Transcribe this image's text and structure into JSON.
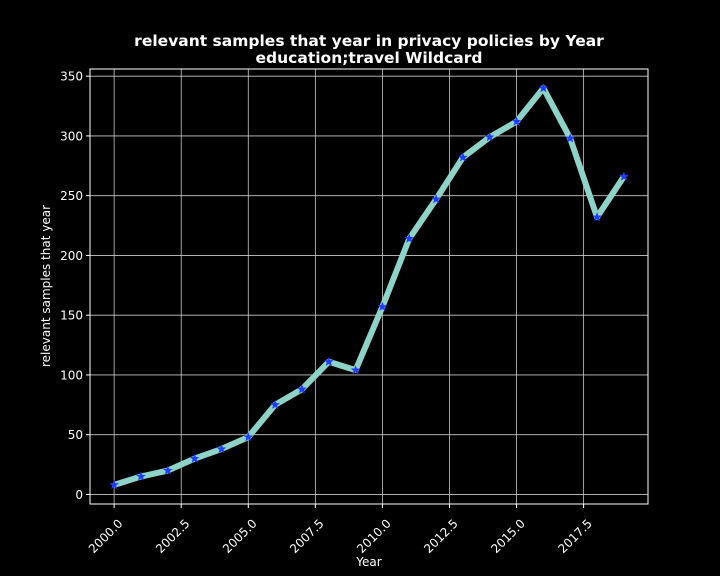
{
  "chart_data": {
    "type": "line",
    "title": "relevant samples that year in privacy policies by Year",
    "subtitle": "education;travel Wildcard",
    "xlabel": "Year",
    "ylabel": "relevant samples that year",
    "xlim": [
      1999.1,
      2019.9
    ],
    "ylim": [
      -8,
      356
    ],
    "xticks": [
      2000.0,
      2002.5,
      2005.0,
      2007.5,
      2010.0,
      2012.5,
      2015.0,
      2017.5
    ],
    "xtick_labels": [
      "2000.0",
      "2002.5",
      "2005.0",
      "2007.5",
      "2010.0",
      "2012.5",
      "2015.0",
      "2017.5"
    ],
    "yticks": [
      0,
      50,
      100,
      150,
      200,
      250,
      300,
      350
    ],
    "ytick_labels": [
      "0",
      "50",
      "100",
      "150",
      "200",
      "250",
      "300",
      "350"
    ],
    "grid": true,
    "series": [
      {
        "x": [
          2000,
          2001,
          2002,
          2003,
          2004,
          2005,
          2006,
          2007,
          2008,
          2009,
          2010,
          2011,
          2012,
          2013,
          2014,
          2015,
          2016,
          2017,
          2018,
          2019
        ],
        "y": [
          8,
          15,
          20,
          30,
          38,
          48,
          75,
          88,
          111,
          104,
          157,
          214,
          247,
          282,
          299,
          312,
          340,
          298,
          232,
          266
        ],
        "line_color": "#8dd3c7",
        "marker_color": "#1f3cff",
        "marker": "star"
      }
    ]
  },
  "colors": {
    "background": "#000000",
    "foreground": "#ffffff",
    "line": "#8dd3c7",
    "marker": "#1f3cff"
  }
}
